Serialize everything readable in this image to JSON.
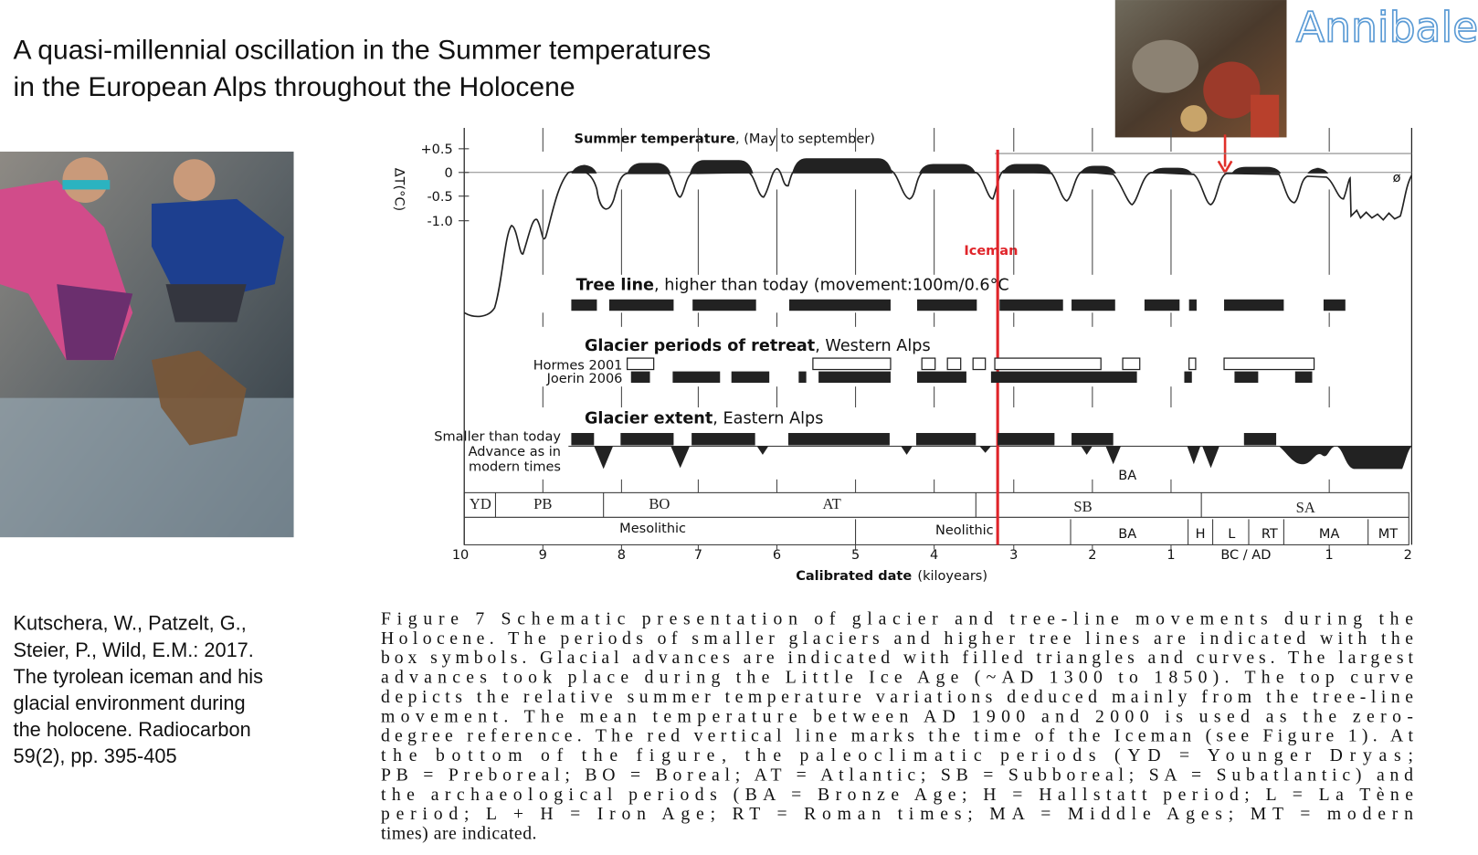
{
  "title": [
    "A quasi-millennial oscillation in the Summer temperatures",
    "in the European Alps throughout the Holocene"
  ],
  "corner_label": "Annibale",
  "citation": [
    "Kutschera, W., Patzelt, G.,",
    "Steier, P., Wild, E.M.: 2017.",
    "The tyrolean iceman and his",
    "glacial environment during",
    "the holocene. Radiocarbon",
    "59(2), pp. 395-405"
  ],
  "figure": {
    "temperature_heading": "Summer temperature",
    "temperature_note": ", (May to september)",
    "y_axis_label": "ΔT(°C)",
    "y_ticks": [
      "+0.5",
      "0",
      "-0.5",
      "-1.0"
    ],
    "zero_symbol": "ø",
    "iceman_label": "Iceman",
    "tree_line_heading": "Tree line",
    "tree_line_note": ", higher than today (movement:100m/0.6°C",
    "retreat_heading": "Glacier periods of retreat",
    "retreat_note": ", Western Alps",
    "retreat_rows": [
      "Hormes 2001",
      "Joerin 2006"
    ],
    "extent_heading": "Glacier extent",
    "extent_note": ", Eastern Alps",
    "extent_rows": [
      "Smaller than today",
      "Advance as in",
      "modern times"
    ],
    "extent_ba": "BA",
    "climate_periods": [
      "YD",
      "PB",
      "BO",
      "AT",
      "SB",
      "SA"
    ],
    "archaeological_periods": [
      "Mesolithic",
      "Neolithic",
      "BA",
      "H",
      "L",
      "RT",
      "MA",
      "MT"
    ],
    "x_ticks": [
      "10",
      "9",
      "8",
      "7",
      "6",
      "5",
      "4",
      "3",
      "2",
      "1",
      "BC / AD",
      "1",
      "2"
    ],
    "x_axis_label": "Calibrated date",
    "x_axis_unit": "(kiloyears)"
  },
  "caption": [
    "Figure 7   Schematic presentation of glacier and tree-line movements during the",
    "Holocene. The periods of smaller glaciers and higher tree lines are indicated with the",
    "box symbols. Glacial advances are indicated with filled triangles and curves. The largest",
    "advances took place during the Little Ice Age (~AD 1300 to 1850). The top curve",
    "depicts the relative summer temperature variations deduced mainly from the tree-line",
    "movement. The mean temperature between AD 1900 and 2000 is used as the zero-",
    "degree reference. The red vertical line marks the time of the Iceman (see Figure 1). At",
    "the bottom of the figure, the paleoclimatic periods (YD = Younger Dryas;",
    "PB = Preboreal; BO = Boreal; AT = Atlantic; SB = Subboreal; SA = Subatlantic) and",
    "the archaeological periods (BA = Bronze Age; H = Hallstatt period; L = La Tène",
    "period; L + H = Iron Age; RT = Roman times; MA = Middle Ages; MT = modern",
    "times) are indicated."
  ]
}
